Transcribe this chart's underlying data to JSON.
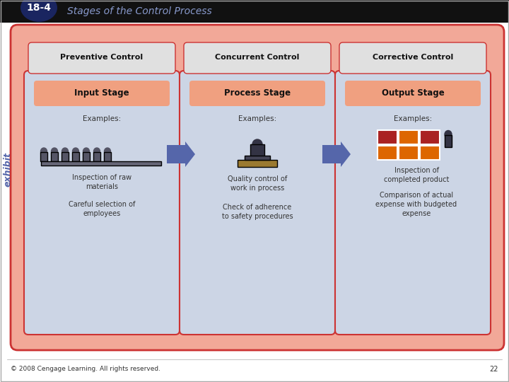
{
  "title": "Stages of the Control Process",
  "exhibit_label": "18-4",
  "header_bg": "#111111",
  "header_title_color": "#8899cc",
  "outer_bg": "#f2a898",
  "inner_bg": "#ccd5e5",
  "control_labels": [
    "Preventive Control",
    "Concurrent Control",
    "Corrective Control"
  ],
  "stage_labels": [
    "Input Stage",
    "Process Stage",
    "Output Stage"
  ],
  "stage_label_bg": "#f0a080",
  "control_label_bg": "#e8e8e8",
  "control_label_color": "#111111",
  "examples_header": "Examples:",
  "col1_bullets": [
    "Inspection of raw\nmaterials",
    "Careful selection of\nemployees"
  ],
  "col2_bullets": [
    "Quality control of\nwork in process",
    "Check of adherence\nto safety procedures"
  ],
  "col3_bullets": [
    "Inspection of\ncompleted product",
    "Comparison of actual\nexpense with budgeted\nexpense"
  ],
  "arrow_color": "#5566aa",
  "footer_text": "© 2008 Cengage Learning. All rights reserved.",
  "footer_page": "22",
  "outer_border_color": "#cc3333",
  "inner_border_color": "#cc3333",
  "text_color": "#333333",
  "exhibit_badge_bg": "#1a2560",
  "exhibit_text_color": "#ccddff"
}
